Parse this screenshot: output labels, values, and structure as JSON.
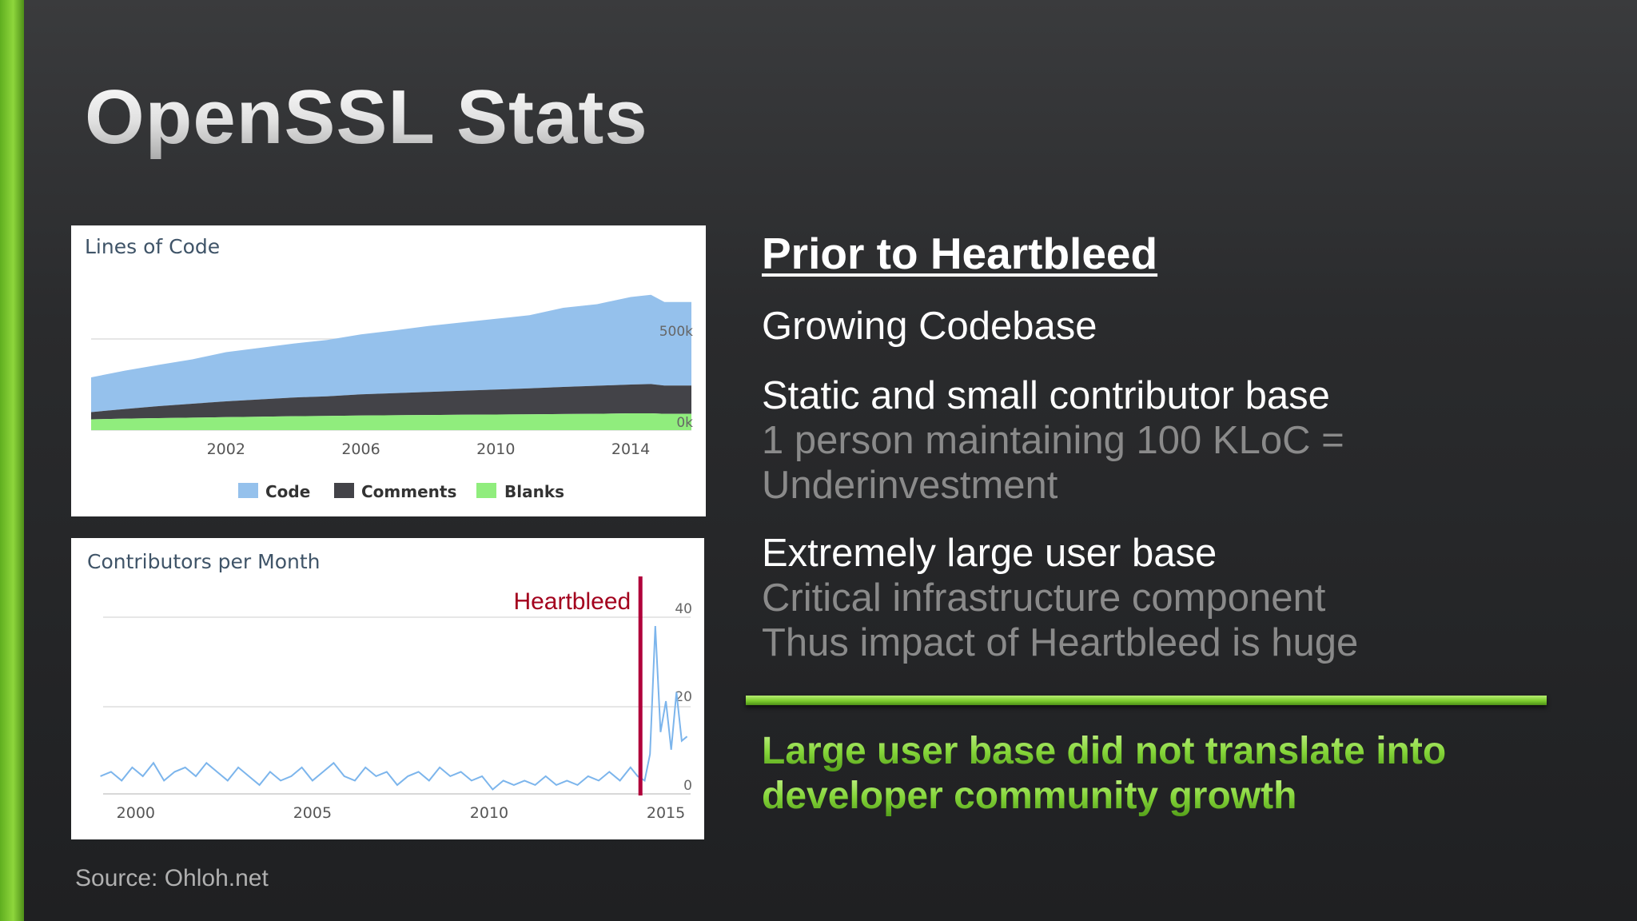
{
  "slide": {
    "title": "OpenSSL Stats",
    "source": "Source: Ohloh.net",
    "accent_color": "#7ccc2d"
  },
  "right_panel": {
    "heading": "Prior to Heartbleed",
    "point1": "Growing Codebase",
    "point2_title": "Static and small contributor base",
    "point2_line1": "1 person maintaining 100 KLoC =",
    "point2_line2": "Underinvestment",
    "point3_title": "Extremely large user base",
    "point3_line1": "Critical infrastructure component",
    "point3_line2": "Thus impact of Heartbleed is huge",
    "conclusion_line1": "Large user base did not translate into",
    "conclusion_line2": "developer community growth"
  },
  "chart_data": [
    {
      "type": "area",
      "title": "Lines of Code",
      "x_ticks": [
        "2002",
        "2006",
        "2010",
        "2014"
      ],
      "y_ticks": [
        "500k",
        "0k"
      ],
      "ylim": [
        0,
        650000
      ],
      "xlim": [
        1998.0,
        2015.8
      ],
      "stacked": true,
      "legend_position": "bottom",
      "x": [
        1998.0,
        1999.0,
        2000.0,
        2001.0,
        2002.0,
        2003.0,
        2004.0,
        2005.0,
        2006.0,
        2007.0,
        2008.0,
        2009.0,
        2010.0,
        2011.0,
        2012.0,
        2013.0,
        2014.0,
        2014.6,
        2015.0,
        2015.8
      ],
      "series": [
        {
          "name": "Blanks",
          "color": "#90ed7d",
          "values": [
            45000,
            48000,
            50000,
            52000,
            54000,
            56000,
            58000,
            59000,
            61000,
            62000,
            63000,
            64000,
            65000,
            66000,
            67000,
            68000,
            70000,
            70000,
            68000,
            68000
          ]
        },
        {
          "name": "Comments",
          "color": "#434348",
          "values": [
            30000,
            40000,
            50000,
            58000,
            66000,
            72000,
            78000,
            82000,
            88000,
            92000,
            96000,
            100000,
            104000,
            108000,
            113000,
            117000,
            120000,
            122000,
            118000,
            118000
          ]
        },
        {
          "name": "Code",
          "color": "#95c1ec",
          "values": [
            145000,
            160000,
            172000,
            185000,
            205000,
            215000,
            225000,
            235000,
            250000,
            262000,
            275000,
            285000,
            295000,
            305000,
            330000,
            340000,
            365000,
            372000,
            348000,
            348000
          ]
        }
      ]
    },
    {
      "type": "line",
      "title": "Contributors per Month",
      "x_ticks": [
        "2000",
        "2005",
        "2010",
        "2015"
      ],
      "y_ticks": [
        "40",
        "20",
        "0"
      ],
      "ylim": [
        0,
        42
      ],
      "xlim": [
        1998.85,
        2015.7
      ],
      "annotation": {
        "label": "Heartbleed",
        "x": 2014.28,
        "color": "#a3001d"
      },
      "series": [
        {
          "name": "Contributors",
          "color": "#7cb5ec",
          "x": [
            1999.0,
            1999.3,
            1999.6,
            1999.9,
            2000.2,
            2000.5,
            2000.8,
            2001.1,
            2001.4,
            2001.7,
            2002.0,
            2002.3,
            2002.6,
            2002.9,
            2003.2,
            2003.5,
            2003.8,
            2004.1,
            2004.4,
            2004.7,
            2005.0,
            2005.3,
            2005.6,
            2005.9,
            2006.2,
            2006.5,
            2006.8,
            2007.1,
            2007.4,
            2007.7,
            2008.0,
            2008.3,
            2008.6,
            2008.9,
            2009.2,
            2009.5,
            2009.8,
            2010.1,
            2010.4,
            2010.7,
            2011.0,
            2011.3,
            2011.6,
            2011.9,
            2012.2,
            2012.5,
            2012.8,
            2013.1,
            2013.4,
            2013.7,
            2014.0,
            2014.2,
            2014.4,
            2014.55,
            2014.7,
            2014.85,
            2015.0,
            2015.15,
            2015.3,
            2015.45,
            2015.6
          ],
          "values": [
            4,
            5,
            3,
            6,
            4,
            7,
            3,
            5,
            6,
            4,
            7,
            5,
            3,
            6,
            4,
            2,
            5,
            3,
            4,
            6,
            3,
            5,
            7,
            4,
            3,
            6,
            4,
            5,
            2,
            4,
            5,
            3,
            6,
            4,
            5,
            3,
            4,
            1,
            3,
            2,
            3,
            2,
            4,
            2,
            3,
            2,
            4,
            3,
            5,
            3,
            6,
            4,
            3,
            9,
            38,
            14,
            21,
            10,
            23,
            12,
            13
          ]
        }
      ]
    }
  ]
}
